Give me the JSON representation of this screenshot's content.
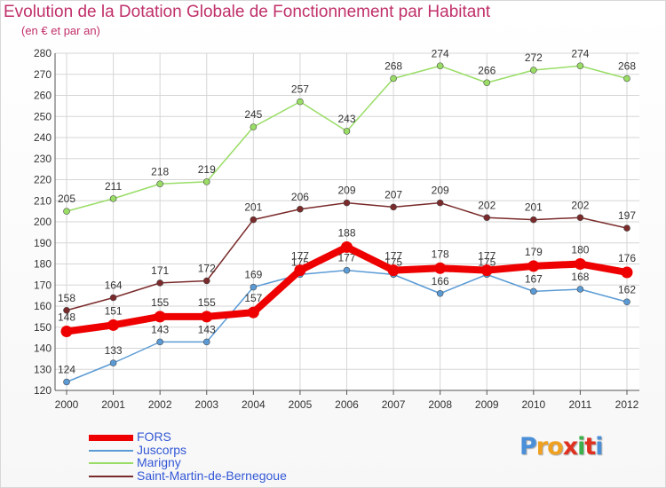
{
  "title": "Evolution de la Dotation Globale de Fonctionnement par Habitant",
  "subtitle": "(en € et par an)",
  "logo": {
    "letters": [
      "P",
      "r",
      "o",
      "x",
      "i",
      "t",
      "i"
    ],
    "colors": [
      "#4a8fd8",
      "#f0a020",
      "#f0a020",
      "#e03020",
      "#3cb04a",
      "#e03020",
      "#4a8fd8"
    ]
  },
  "chart_data": {
    "type": "line",
    "title": "Evolution de la Dotation Globale de Fonctionnement par Habitant",
    "subtitle": "(en € et par an)",
    "x": [
      "2000",
      "2001",
      "2002",
      "2003",
      "2004",
      "2005",
      "2006",
      "2007",
      "2008",
      "2009",
      "2010",
      "2011",
      "2012"
    ],
    "ylim": [
      120,
      280
    ],
    "yticks": [
      120,
      130,
      140,
      150,
      160,
      170,
      180,
      190,
      200,
      210,
      220,
      230,
      240,
      250,
      260,
      270,
      280
    ],
    "grid": true,
    "legend_position": "bottom",
    "series": [
      {
        "name": "FORS",
        "color": "#ee0000",
        "emphasis": true,
        "values": [
          148,
          151,
          155,
          155,
          157,
          177,
          188,
          177,
          178,
          177,
          179,
          180,
          176
        ]
      },
      {
        "name": "Juscorps",
        "color": "#5b9bd5",
        "emphasis": false,
        "values": [
          124,
          133,
          143,
          143,
          169,
          175,
          177,
          175,
          166,
          175,
          167,
          168,
          162
        ]
      },
      {
        "name": "Marigny",
        "color": "#99dd66",
        "emphasis": false,
        "values": [
          205,
          211,
          218,
          219,
          245,
          257,
          243,
          268,
          274,
          266,
          272,
          274,
          268
        ]
      },
      {
        "name": "Saint-Martin-de-Bernegoue",
        "color": "#7a2a2a",
        "emphasis": false,
        "values": [
          158,
          164,
          171,
          172,
          201,
          206,
          209,
          207,
          209,
          202,
          201,
          202,
          197
        ]
      }
    ]
  }
}
